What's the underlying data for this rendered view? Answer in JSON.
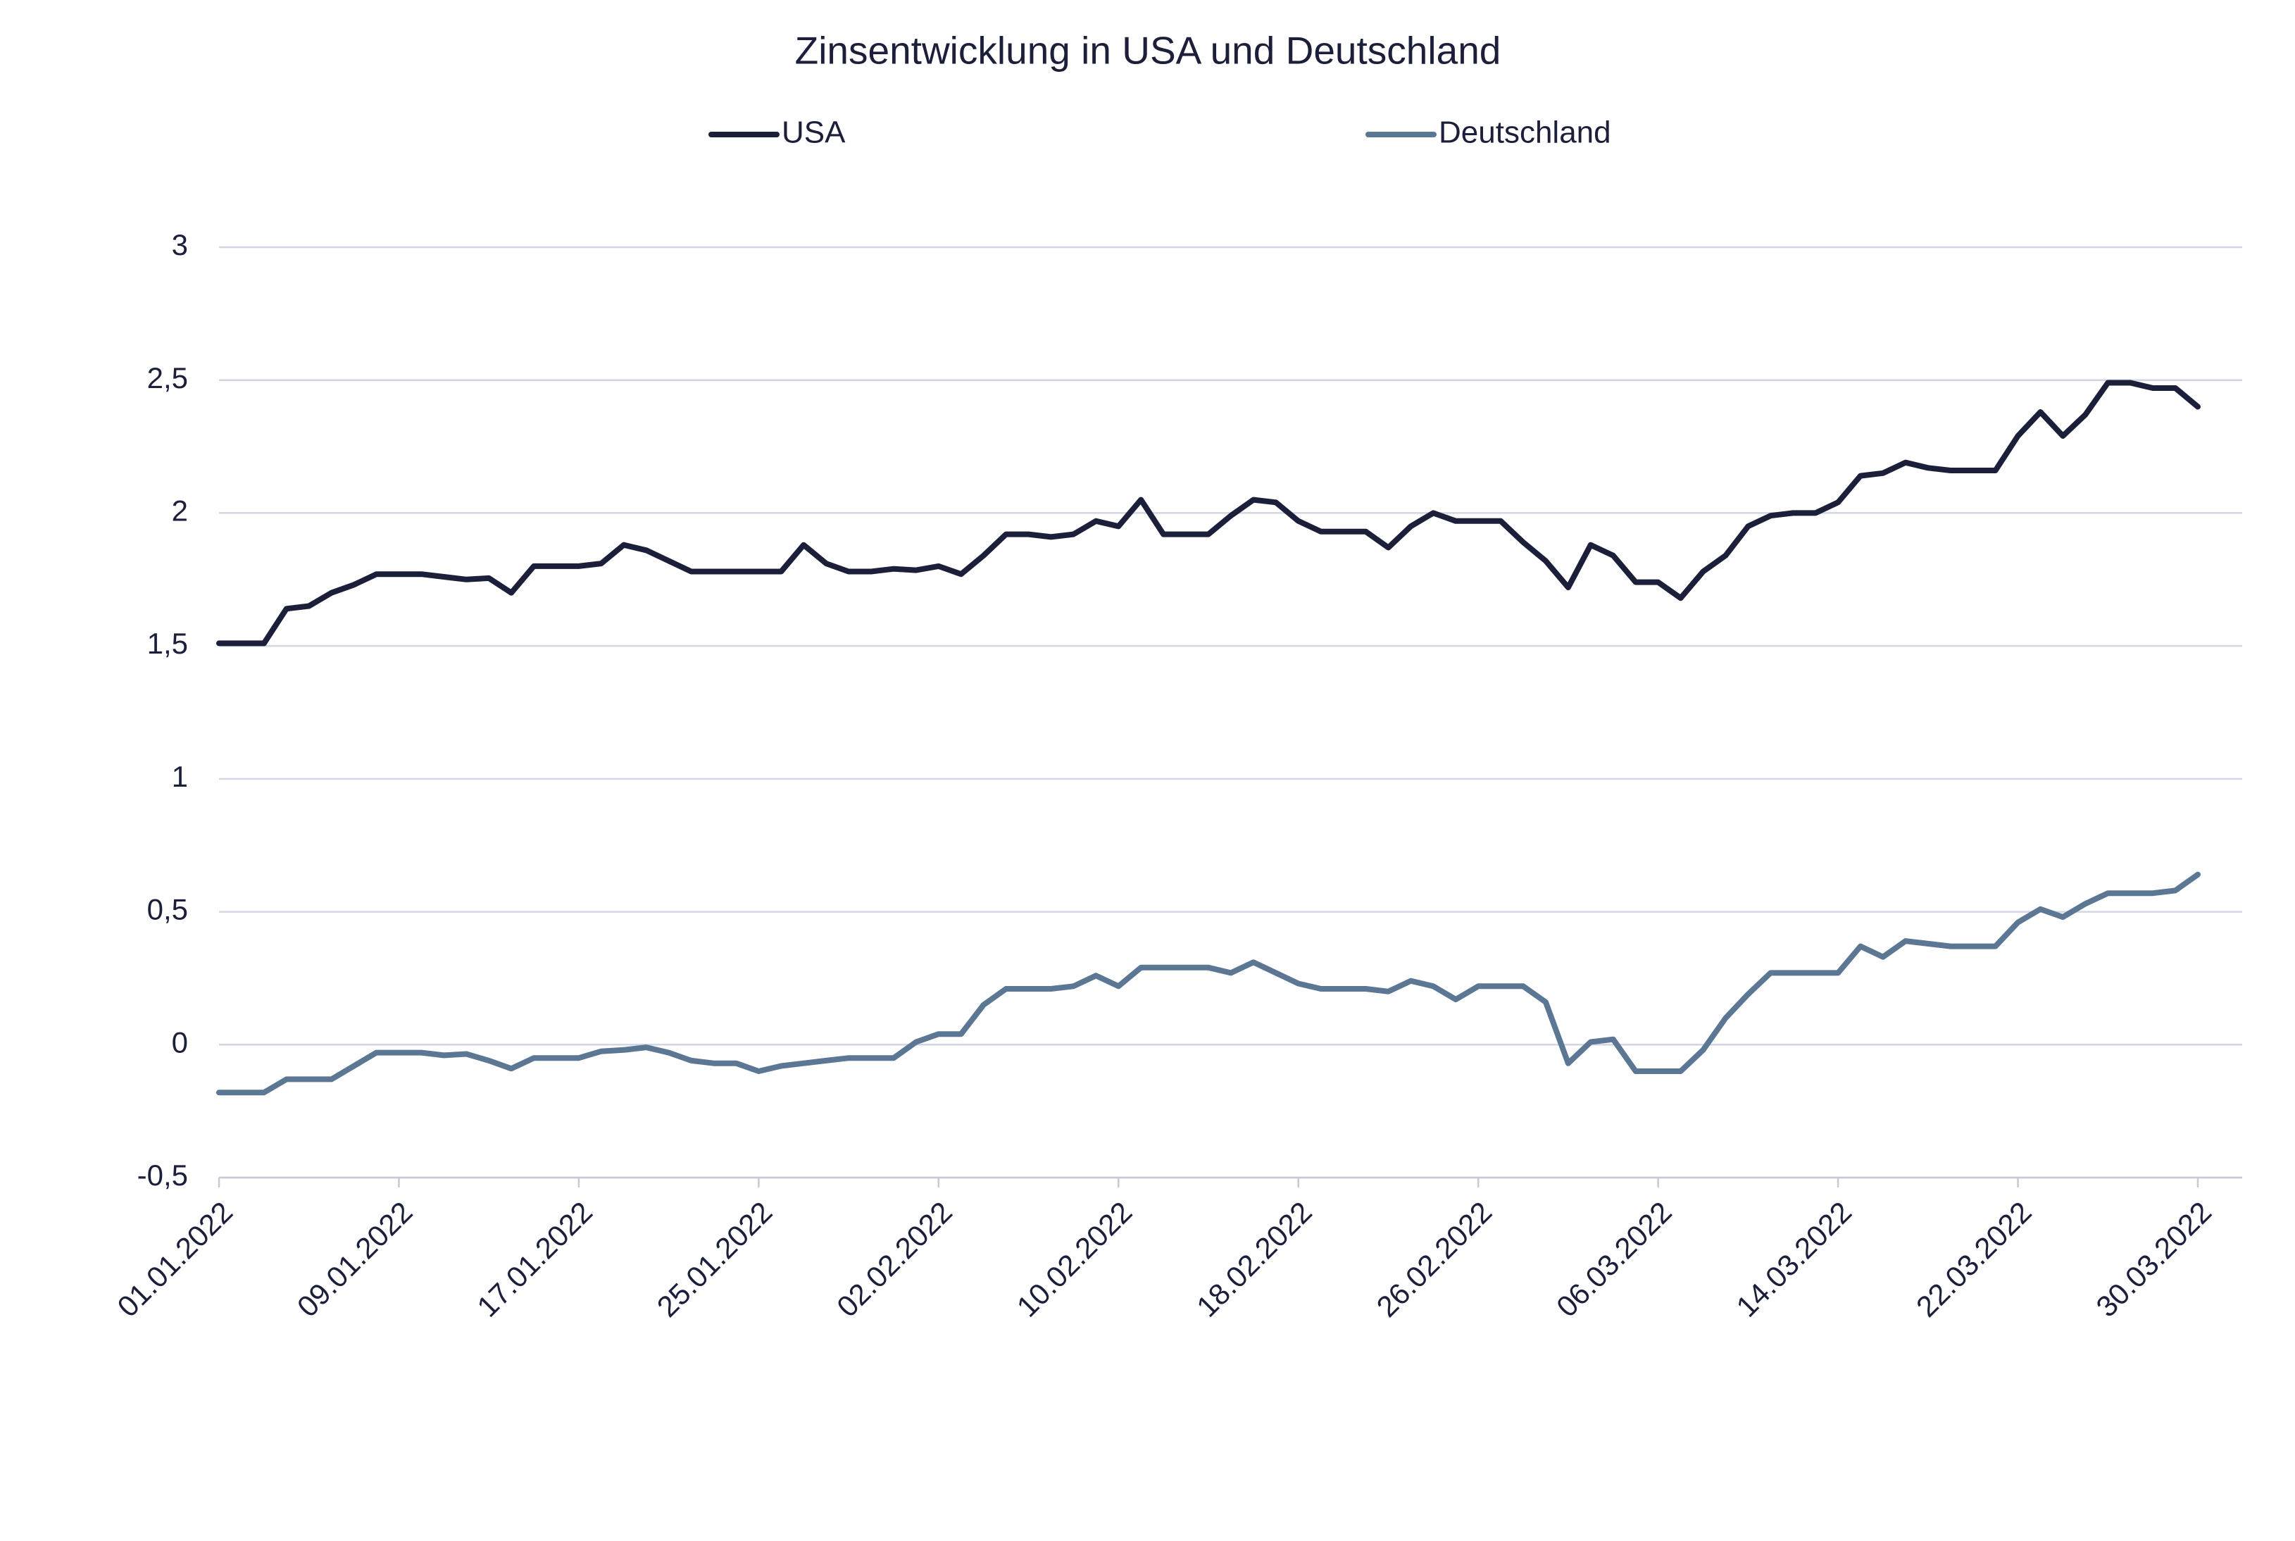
{
  "chart_data": {
    "type": "line",
    "title": "Zinsentwicklung in USA und Deutschland",
    "x": [
      "01.01.2022",
      "02.01.2022",
      "03.01.2022",
      "04.01.2022",
      "05.01.2022",
      "06.01.2022",
      "07.01.2022",
      "08.01.2022",
      "09.01.2022",
      "10.01.2022",
      "11.01.2022",
      "12.01.2022",
      "13.01.2022",
      "14.01.2022",
      "15.01.2022",
      "16.01.2022",
      "17.01.2022",
      "18.01.2022",
      "19.01.2022",
      "20.01.2022",
      "21.01.2022",
      "22.01.2022",
      "23.01.2022",
      "24.01.2022",
      "25.01.2022",
      "26.01.2022",
      "27.01.2022",
      "28.01.2022",
      "29.01.2022",
      "30.01.2022",
      "31.01.2022",
      "01.02.2022",
      "02.02.2022",
      "03.02.2022",
      "04.02.2022",
      "05.02.2022",
      "06.02.2022",
      "07.02.2022",
      "08.02.2022",
      "09.02.2022",
      "10.02.2022",
      "11.02.2022",
      "12.02.2022",
      "13.02.2022",
      "14.02.2022",
      "15.02.2022",
      "16.02.2022",
      "17.02.2022",
      "18.02.2022",
      "19.02.2022",
      "20.02.2022",
      "21.02.2022",
      "22.02.2022",
      "23.02.2022",
      "24.02.2022",
      "25.02.2022",
      "26.02.2022",
      "27.02.2022",
      "28.02.2022",
      "01.03.2022",
      "02.03.2022",
      "03.03.2022",
      "04.03.2022",
      "05.03.2022",
      "06.03.2022",
      "07.03.2022",
      "08.03.2022",
      "09.03.2022",
      "10.03.2022",
      "11.03.2022",
      "12.03.2022",
      "13.03.2022",
      "14.03.2022",
      "15.03.2022",
      "16.03.2022",
      "17.03.2022",
      "18.03.2022",
      "19.03.2022",
      "20.03.2022",
      "21.03.2022",
      "22.03.2022",
      "23.03.2022",
      "24.03.2022",
      "25.03.2022",
      "26.03.2022",
      "27.03.2022",
      "28.03.2022",
      "29.03.2022",
      "30.03.2022"
    ],
    "series": [
      {
        "name": "USA",
        "color": "#1c1f3a",
        "values": [
          1.51,
          1.51,
          1.51,
          1.64,
          1.65,
          1.7,
          1.73,
          1.77,
          1.77,
          1.77,
          1.76,
          1.75,
          1.755,
          1.7,
          1.8,
          1.8,
          1.8,
          1.81,
          1.88,
          1.86,
          1.82,
          1.78,
          1.78,
          1.78,
          1.78,
          1.78,
          1.88,
          1.81,
          1.78,
          1.78,
          1.79,
          1.785,
          1.8,
          1.77,
          1.84,
          1.92,
          1.92,
          1.91,
          1.92,
          1.97,
          1.95,
          2.05,
          1.92,
          1.92,
          1.92,
          1.99,
          2.05,
          2.04,
          1.97,
          1.93,
          1.93,
          1.93,
          1.87,
          1.95,
          2.0,
          1.97,
          1.97,
          1.97,
          1.89,
          1.82,
          1.72,
          1.88,
          1.84,
          1.74,
          1.74,
          1.68,
          1.78,
          1.84,
          1.95,
          1.99,
          2.0,
          2.0,
          2.04,
          2.14,
          2.15,
          2.19,
          2.17,
          2.16,
          2.16,
          2.16,
          2.29,
          2.38,
          2.29,
          2.37,
          2.49,
          2.49,
          2.47,
          2.47,
          2.4
        ]
      },
      {
        "name": "Deutschland",
        "color": "#5b7793",
        "values": [
          -0.18,
          -0.18,
          -0.18,
          -0.13,
          -0.13,
          -0.13,
          -0.08,
          -0.03,
          -0.03,
          -0.03,
          -0.04,
          -0.035,
          -0.06,
          -0.09,
          -0.05,
          -0.05,
          -0.05,
          -0.025,
          -0.02,
          -0.01,
          -0.03,
          -0.06,
          -0.07,
          -0.07,
          -0.1,
          -0.08,
          -0.07,
          -0.06,
          -0.05,
          -0.05,
          -0.05,
          0.01,
          0.04,
          0.04,
          0.15,
          0.21,
          0.21,
          0.21,
          0.22,
          0.26,
          0.22,
          0.29,
          0.29,
          0.29,
          0.29,
          0.27,
          0.31,
          0.27,
          0.23,
          0.21,
          0.21,
          0.21,
          0.2,
          0.24,
          0.22,
          0.17,
          0.22,
          0.22,
          0.22,
          0.16,
          -0.07,
          0.01,
          0.02,
          -0.1,
          -0.1,
          -0.1,
          -0.02,
          0.1,
          0.19,
          0.27,
          0.27,
          0.27,
          0.27,
          0.37,
          0.33,
          0.39,
          0.38,
          0.37,
          0.37,
          0.37,
          0.46,
          0.51,
          0.48,
          0.53,
          0.57,
          0.57,
          0.57,
          0.58,
          0.64
        ]
      }
    ],
    "xlim": [
      "01.01.2022",
      "30.03.2022"
    ],
    "xticks": [
      "01.01.2022",
      "09.01.2022",
      "17.01.2022",
      "25.01.2022",
      "02.02.2022",
      "10.02.2022",
      "18.02.2022",
      "26.02.2022",
      "06.03.2022",
      "14.03.2022",
      "22.03.2022",
      "30.03.2022"
    ],
    "ylim": [
      -0.5,
      3
    ],
    "yticks": [
      {
        "value": -0.5,
        "label": "-0,5"
      },
      0,
      {
        "value": 0.5,
        "label": "0,5"
      },
      1,
      {
        "value": 1.5,
        "label": "1,5"
      },
      2,
      {
        "value": 2.5,
        "label": "2,5"
      },
      3
    ],
    "grid": true,
    "legend": "top"
  }
}
